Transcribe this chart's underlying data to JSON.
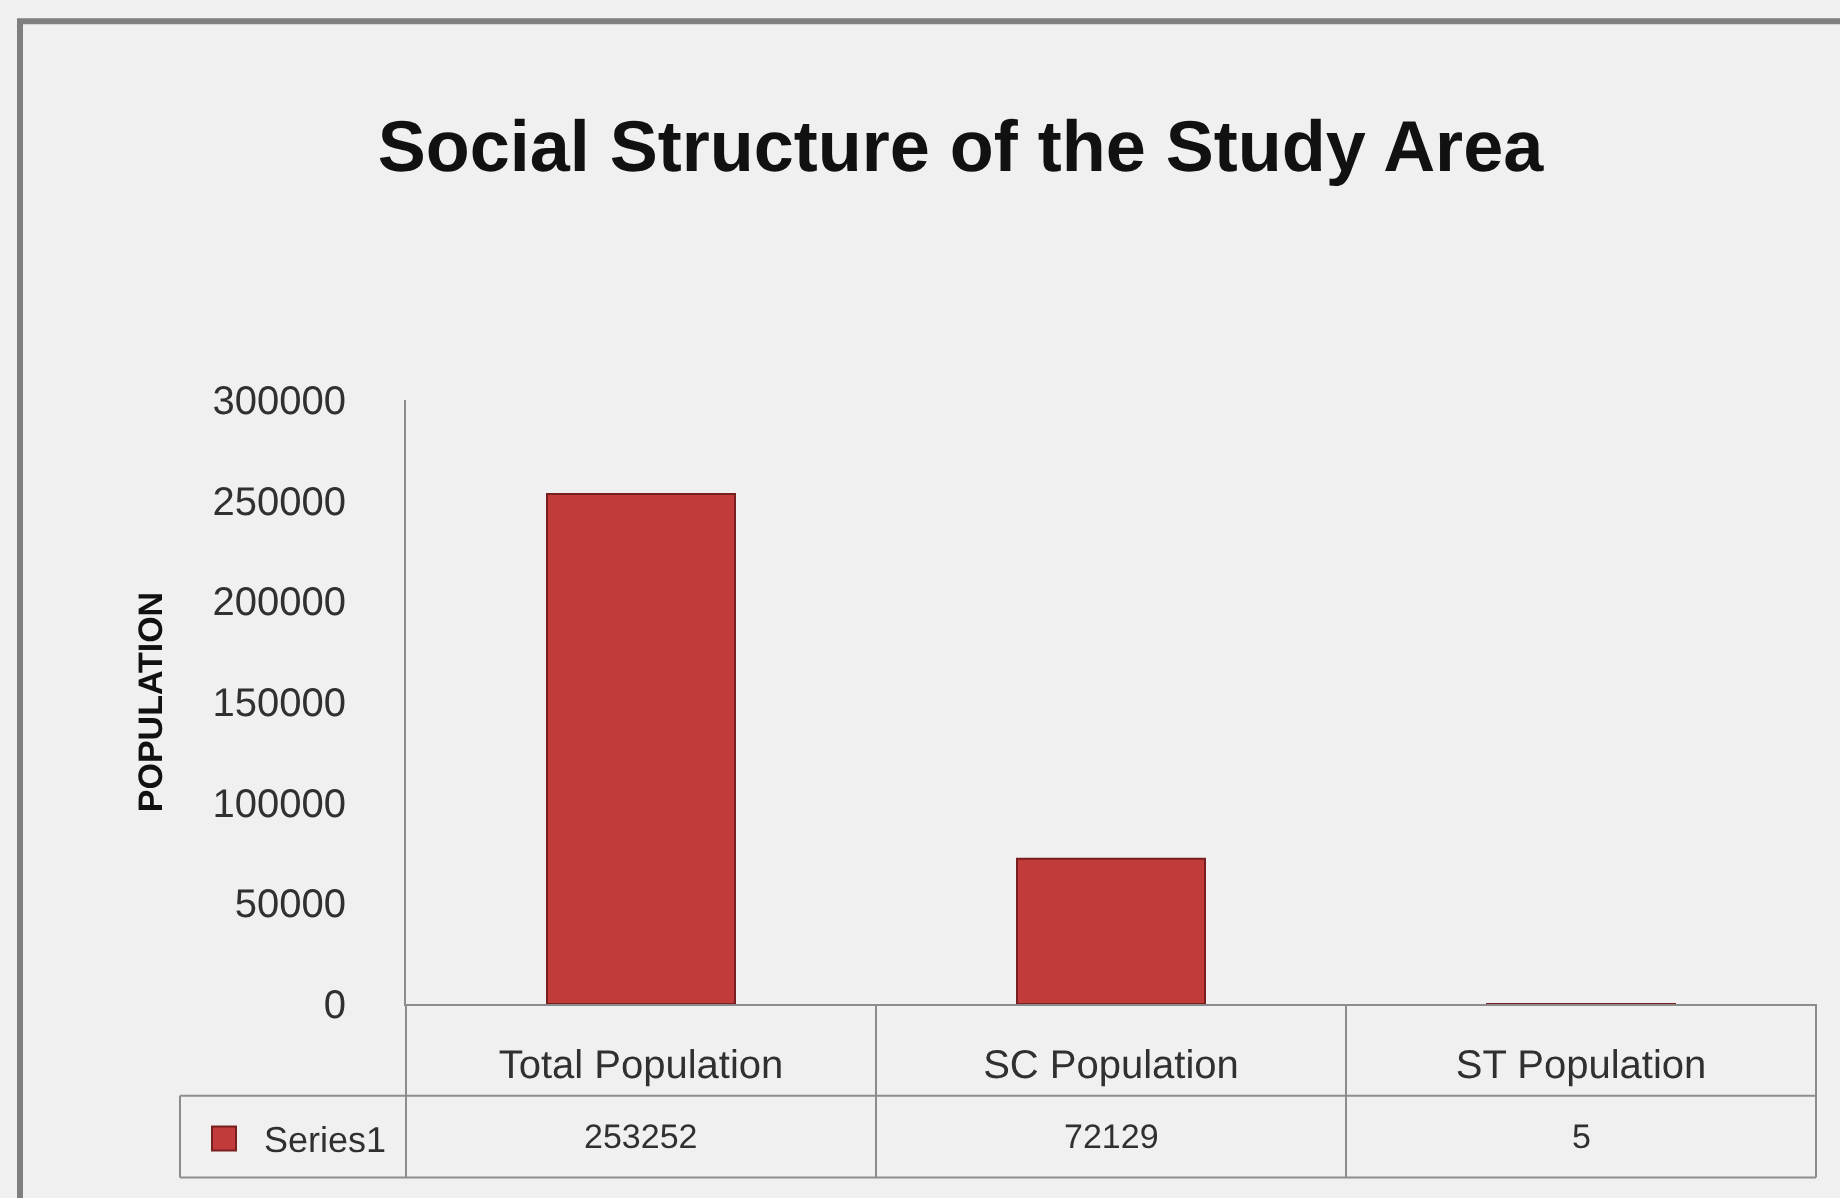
{
  "chart_data": {
    "type": "bar",
    "title": "Social Structure of the Study Area",
    "ylabel": "POPULATION",
    "categories": [
      "Total Population",
      "SC Population",
      "ST Population"
    ],
    "series": [
      {
        "name": "Series1",
        "color": "#c23b3b",
        "values": [
          253252,
          72129,
          5
        ]
      }
    ],
    "ylim": [
      0,
      300000
    ],
    "yticks": [
      0,
      50000,
      100000,
      150000,
      200000,
      250000,
      300000
    ],
    "data_labels": true,
    "legend": "bottom left"
  }
}
